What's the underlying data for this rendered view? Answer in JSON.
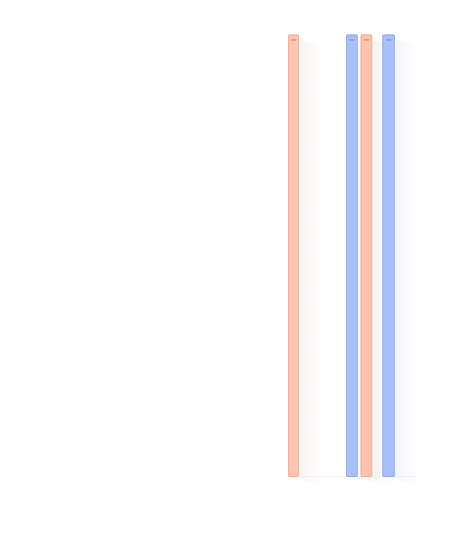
{
  "chart_data": {
    "type": "bar",
    "categories": [
      "",
      "",
      "",
      ""
    ],
    "values": [
      100,
      100,
      100,
      100
    ],
    "title": "",
    "xlabel": "",
    "ylabel": "",
    "grid": false,
    "legend": "none",
    "ylim": [
      0,
      100
    ]
  },
  "colors": {
    "peach": "#ffc4af",
    "blue": "#a8bff7",
    "background": "#ffffff"
  }
}
